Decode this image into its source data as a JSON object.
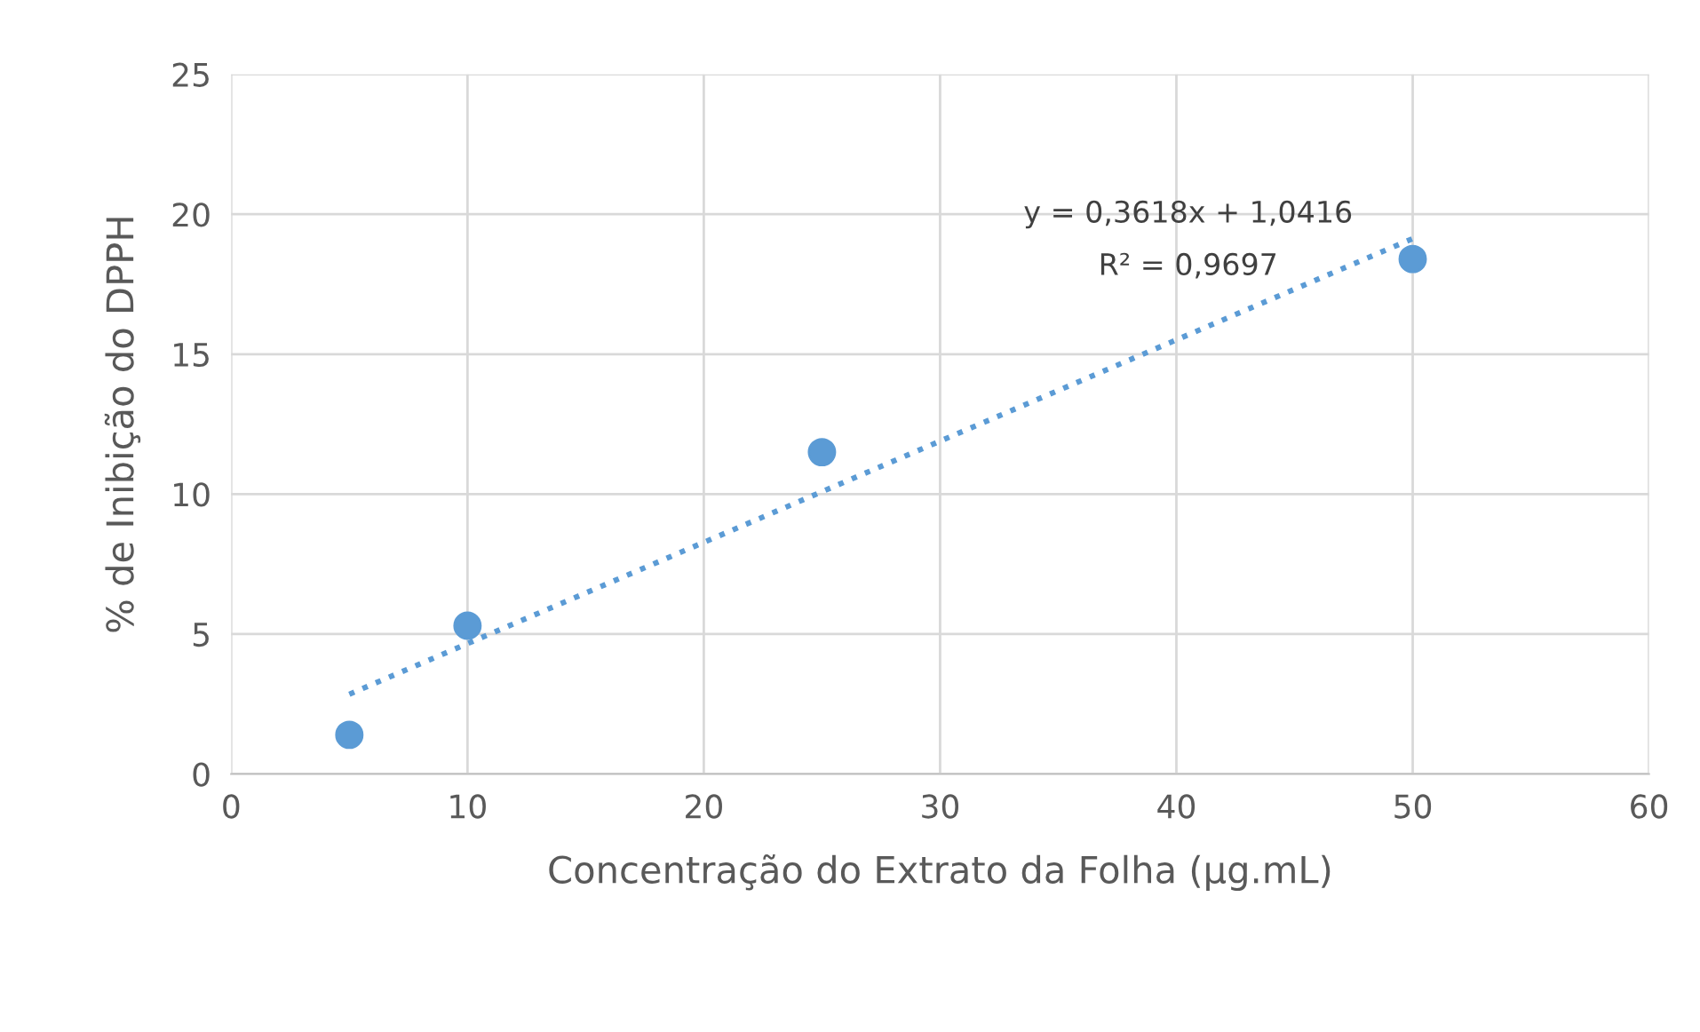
{
  "chart_data": {
    "type": "scatter",
    "xlabel": "Concentração do Extrato da Folha (µg.mL)",
    "ylabel": "% de Inibição do DPPH",
    "series": [
      {
        "color": "#5b9bd5",
        "x": [
          5,
          10,
          25,
          50
        ],
        "values": [
          1.4,
          5.3,
          11.5,
          18.4
        ],
        "marker": "circle"
      },
      {
        "type": "line",
        "color": "#5b9bd5",
        "x": [
          5,
          50
        ],
        "values": [
          2.85,
          19.13
        ],
        "line_style": "dotted",
        "marker": "none"
      }
    ],
    "annotations": [
      "y = 0,3618x + 1,0416",
      "R² = 0,9697"
    ],
    "xlim": [
      0,
      60
    ],
    "xticks": [
      0,
      10,
      20,
      30,
      40,
      50,
      60
    ],
    "ylim": [
      0,
      25
    ],
    "yticks": [
      0,
      5,
      10,
      15,
      20,
      25
    ],
    "grid": true,
    "legend": false
  }
}
